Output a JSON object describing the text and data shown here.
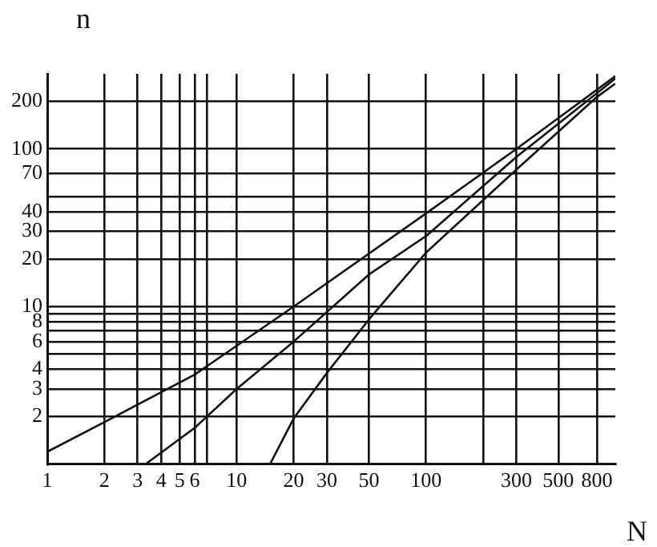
{
  "chart_data": {
    "type": "line",
    "xlabel": "N",
    "ylabel": "n",
    "log": "xy",
    "grid": true,
    "legend": false,
    "marker": "none",
    "xlim": [
      1,
      1000
    ],
    "ylim": [
      1,
      300
    ],
    "xticks": [
      1,
      2,
      3,
      4,
      5,
      6,
      {
        "value": 7,
        "label": null
      },
      10,
      20,
      30,
      50,
      100,
      {
        "value": 200,
        "label": null
      },
      300,
      500,
      800
    ],
    "yticks": [
      2,
      3,
      4,
      {
        "value": 5,
        "label": null
      },
      6,
      {
        "value": 7,
        "label": null
      },
      8,
      {
        "value": 9,
        "label": null
      },
      10,
      20,
      30,
      40,
      {
        "value": 50,
        "label": null
      },
      70,
      100,
      200
    ],
    "series": [
      {
        "color": "#111111",
        "x": [
          1,
          2,
          6,
          20,
          100,
          300,
          1000
        ],
        "values": [
          1.2,
          1.85,
          3.7,
          10,
          39,
          100,
          290
        ]
      },
      {
        "color": "#111111",
        "x": [
          3.3,
          6,
          10,
          20,
          50,
          100,
          300,
          1000
        ],
        "values": [
          1,
          1.7,
          3,
          6,
          16,
          28,
          89,
          280
        ]
      },
      {
        "color": "#111111",
        "x": [
          15,
          20,
          30,
          50,
          100,
          300,
          800,
          1000
        ],
        "values": [
          1,
          1.95,
          3.8,
          8.3,
          22,
          74,
          214,
          260
        ]
      }
    ]
  }
}
